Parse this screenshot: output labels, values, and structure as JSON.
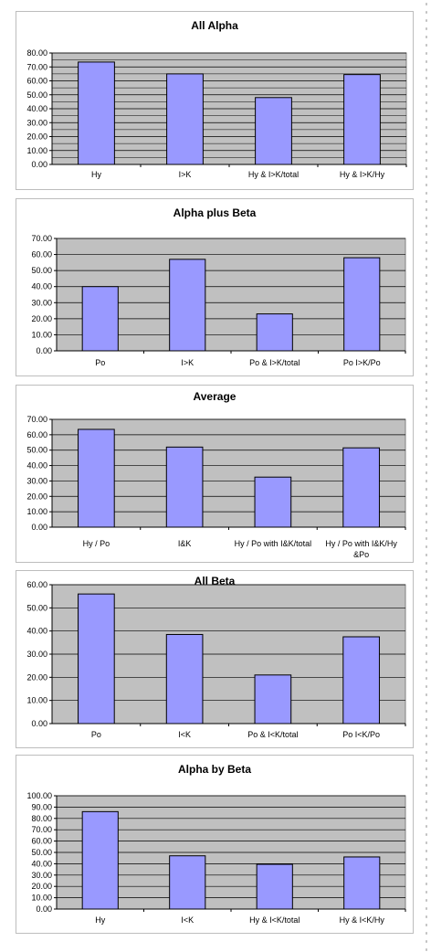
{
  "colors": {
    "bar_fill": "#9999ff",
    "bar_stroke": "#000000",
    "plot_bg": "#c0c0c0",
    "grid": "#000000"
  },
  "chart_data": [
    {
      "type": "bar",
      "title": "All Alpha",
      "categories": [
        "Hy",
        "I>K",
        "Hy & I>K/total",
        "Hy & I>K/Hy"
      ],
      "values": [
        73.5,
        65.0,
        48.0,
        64.5
      ],
      "yticks": [
        "0.00",
        "10.00",
        "20.00",
        "30.00",
        "40.00",
        "50.00",
        "60.00",
        "70.00",
        "80.00"
      ],
      "ylim": [
        0,
        80
      ],
      "ystep": 10,
      "minor_grid": true,
      "grid": true,
      "legend": "none"
    },
    {
      "type": "bar",
      "title": "Alpha plus Beta",
      "categories": [
        "Po",
        "I>K",
        "Po & I>K/total",
        "Po I>K/Po"
      ],
      "values": [
        40.0,
        57.0,
        23.0,
        58.0
      ],
      "yticks": [
        "0.00",
        "10.00",
        "20.00",
        "30.00",
        "40.00",
        "50.00",
        "60.00",
        "70.00"
      ],
      "ylim": [
        0,
        70
      ],
      "ystep": 10,
      "minor_grid": false,
      "grid": true,
      "legend": "none"
    },
    {
      "type": "bar",
      "title": "Average",
      "categories": [
        "Hy / Po",
        "I&K",
        "Hy / Po with I&K/total",
        [
          "Hy / Po with I&K/Hy",
          "&Po"
        ]
      ],
      "values": [
        63.5,
        52.0,
        32.5,
        51.5
      ],
      "yticks": [
        "0.00",
        "10.00",
        "20.00",
        "30.00",
        "40.00",
        "50.00",
        "60.00",
        "70.00"
      ],
      "ylim": [
        0,
        70
      ],
      "ystep": 10,
      "minor_grid": false,
      "grid": true,
      "legend": "none"
    },
    {
      "type": "bar",
      "title": "All Beta",
      "categories": [
        "Po",
        "I<K",
        "Po & I<K/total",
        "Po I<K/Po"
      ],
      "values": [
        56.0,
        38.5,
        21.0,
        37.5
      ],
      "yticks": [
        "0.00",
        "10.00",
        "20.00",
        "30.00",
        "40.00",
        "50.00",
        "60.00"
      ],
      "ylim": [
        0,
        60
      ],
      "ystep": 10,
      "minor_grid": false,
      "grid": true,
      "legend": "none"
    },
    {
      "type": "bar",
      "title": "Alpha by Beta",
      "categories": [
        "Hy",
        "I<K",
        "Hy & I<K/total",
        "Hy & I<K/Hy"
      ],
      "values": [
        86.0,
        47.0,
        39.5,
        46.0
      ],
      "yticks": [
        "0.00",
        "10.00",
        "20.00",
        "30.00",
        "40.00",
        "50.00",
        "60.00",
        "70.00",
        "80.00",
        "90.00",
        "100.00"
      ],
      "ylim": [
        0,
        100
      ],
      "ystep": 10,
      "minor_grid": false,
      "grid": true,
      "legend": "none"
    }
  ]
}
